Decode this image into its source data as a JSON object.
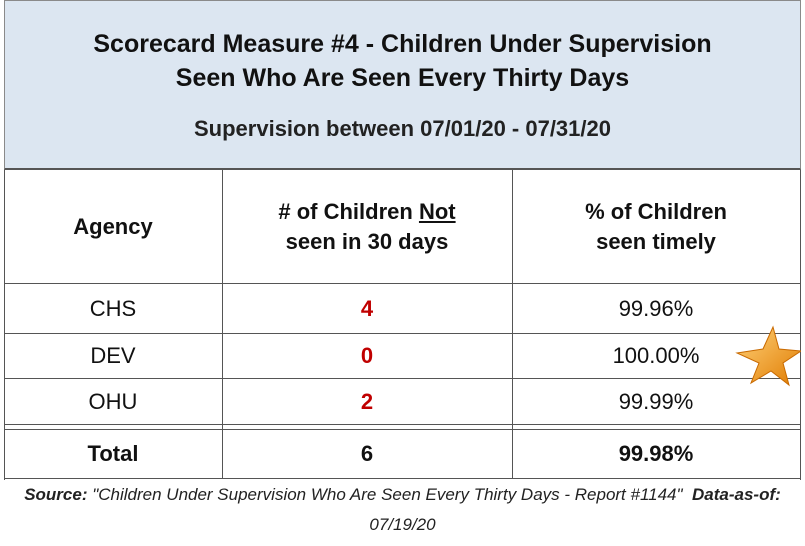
{
  "header": {
    "title_lines": [
      "Scorecard Measure #4 - Children Under Supervision",
      "Seen Who Are Seen Every Thirty Days"
    ],
    "subtitle": "Supervision between 07/01/20 - 07/31/20"
  },
  "table": {
    "columns": [
      "Agency",
      {
        "before": "# of Children",
        "underlined": "Not",
        "after": "seen in 30 days"
      },
      [
        "% of Children",
        "seen timely"
      ]
    ],
    "rows": [
      [
        "CHS",
        4,
        "99.96%"
      ],
      [
        "DEV",
        0,
        "100.00%"
      ],
      [
        "OHU",
        2,
        "99.99%"
      ]
    ],
    "total": [
      "Total",
      6,
      "99.98%"
    ]
  },
  "footer": {
    "source_label": "Source:",
    "source_text": "\"Children Under Supervision Who Are Seen Every Thirty Days - Report #1144\"",
    "data_as_of_label": "Data-as-of:",
    "data_as_of": "07/19/20"
  }
}
